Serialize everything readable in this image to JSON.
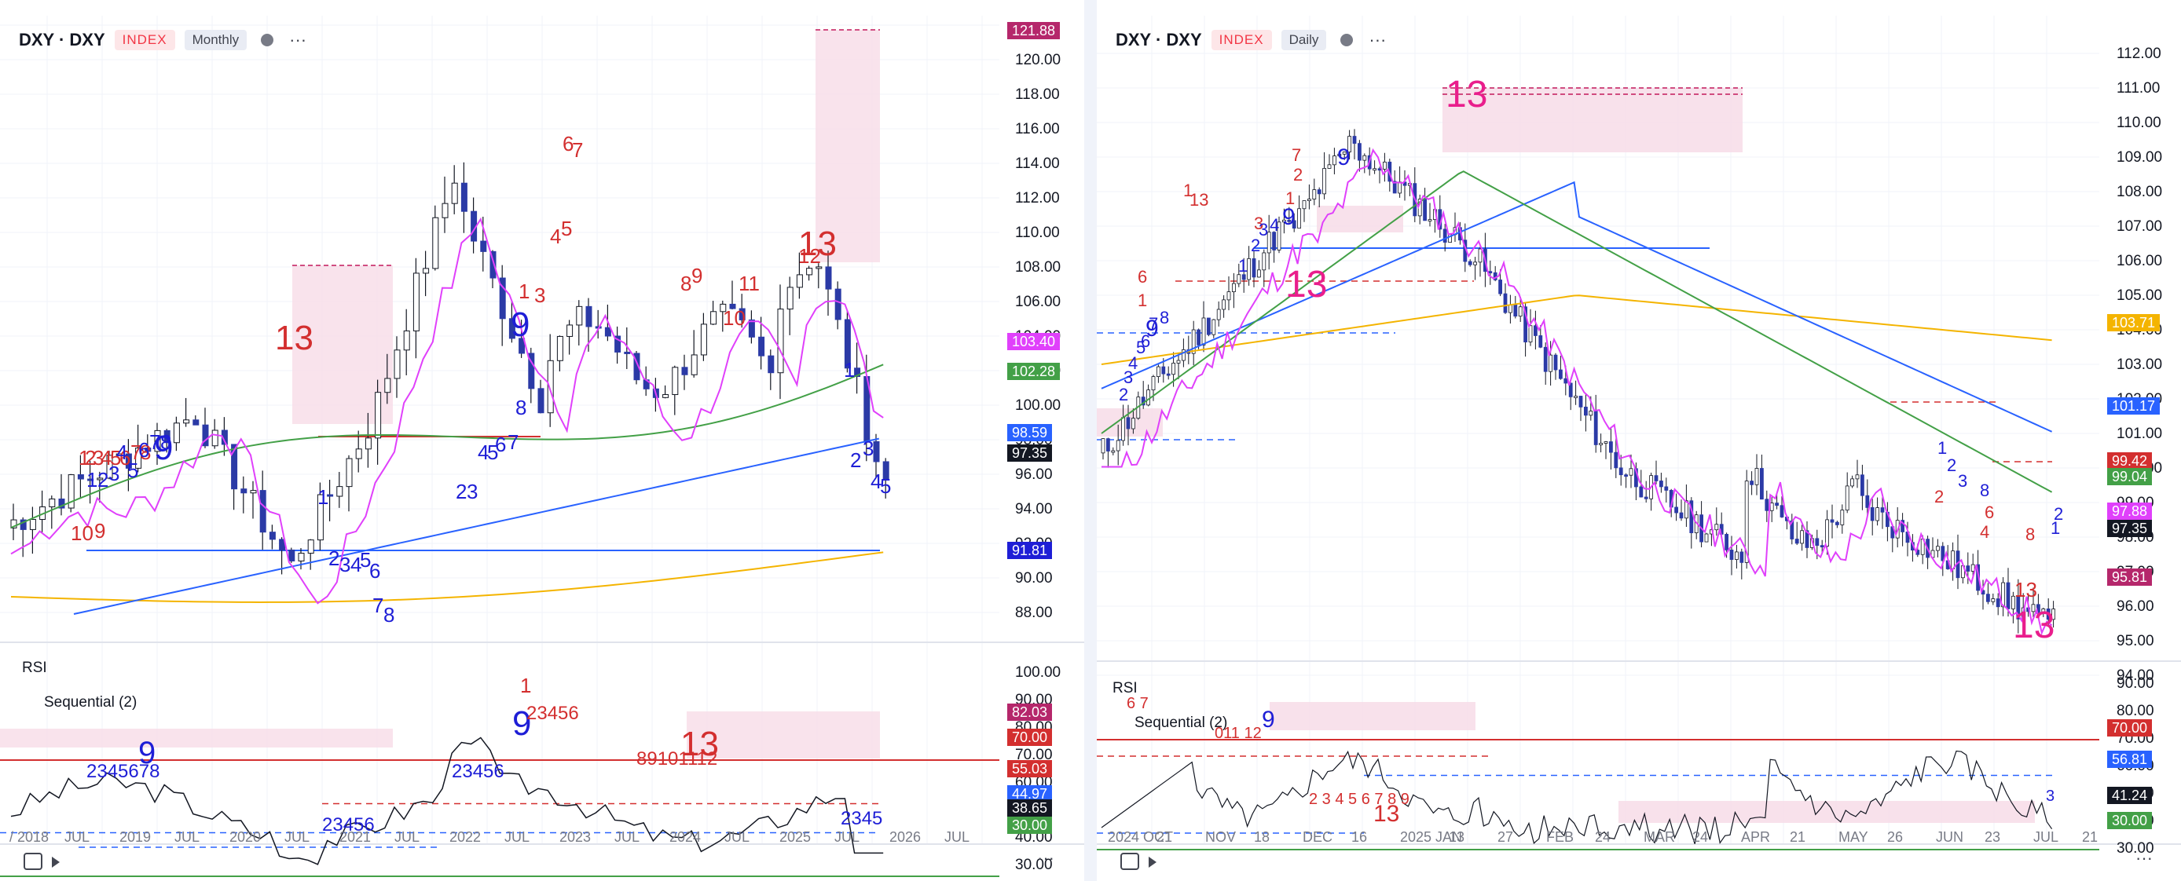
{
  "left": {
    "symbol": "DXY · DXY",
    "badge": "INDEX",
    "interval": "Monthly",
    "price_axis": [
      "122.00",
      "120.00",
      "118.00",
      "116.00",
      "114.00",
      "112.00",
      "110.00",
      "108.00",
      "106.00",
      "104.00",
      "102.00",
      "100.00",
      "98.00",
      "96.00",
      "94.00",
      "92.00",
      "90.00",
      "88.00"
    ],
    "price_tags": [
      {
        "text": "121.88",
        "color": "#b5276b"
      },
      {
        "text": "103.40",
        "color": "#e040fb"
      },
      {
        "text": "102.28",
        "color": "#43a047"
      },
      {
        "text": "98.59",
        "color": "#2962ff"
      },
      {
        "text": "97.35",
        "color": "#131722"
      },
      {
        "text": "91.81",
        "color": "#1e1ed6"
      }
    ],
    "rsi_label": "RSI",
    "seq_label": "Sequential (2)",
    "rsi_axis": [
      "100.00",
      "90.00",
      "80.00",
      "70.00",
      "60.00",
      "50.00",
      "40.00",
      "30.00"
    ],
    "rsi_tags": [
      {
        "text": "82.03",
        "color": "#b5276b"
      },
      {
        "text": "70.00",
        "color": "#d32f2f"
      },
      {
        "text": "55.03",
        "color": "#d32f2f"
      },
      {
        "text": "44.97",
        "color": "#2962ff"
      },
      {
        "text": "38.65",
        "color": "#131722"
      },
      {
        "text": "30.00",
        "color": "#43a047"
      }
    ],
    "time_axis": [
      "/ 2018",
      "JUL",
      "2019",
      "JUL",
      "2020",
      "JUL",
      "2021",
      "JUL",
      "2022",
      "JUL",
      "2023",
      "JUL",
      "2024",
      "JUL",
      "2025",
      "JUL",
      "2026",
      "JUL"
    ],
    "counts": {
      "thirteen_a": "13",
      "thirteen_b": "13",
      "thirteen_rsi": "13",
      "nine_a": "9",
      "nine_b": "9",
      "nine_c": "9",
      "nine_rsi": "9"
    }
  },
  "right": {
    "symbol": "DXY · DXY",
    "badge": "INDEX",
    "interval": "Daily",
    "price_axis": [
      "112.00",
      "111.00",
      "110.00",
      "109.00",
      "108.00",
      "107.00",
      "106.00",
      "105.00",
      "104.00",
      "103.00",
      "102.00",
      "101.00",
      "100.00",
      "99.00",
      "98.00",
      "97.00",
      "96.00",
      "95.00",
      "94.00"
    ],
    "price_tags": [
      {
        "text": "103.71",
        "color": "#f4b400"
      },
      {
        "text": "101.17",
        "color": "#2962ff"
      },
      {
        "text": "99.42",
        "color": "#d32f2f"
      },
      {
        "text": "99.04",
        "color": "#43a047"
      },
      {
        "text": "97.88",
        "color": "#e040fb"
      },
      {
        "text": "97.35",
        "color": "#131722"
      },
      {
        "text": "95.81",
        "color": "#b5276b"
      }
    ],
    "rsi_label": "RSI",
    "seq_label": "Sequential (2)",
    "rsi_axis": [
      "90.00",
      "80.00",
      "70.00",
      "60.00",
      "50.00",
      "40.00",
      "30.00"
    ],
    "rsi_tags": [
      {
        "text": "70.00",
        "color": "#d32f2f"
      },
      {
        "text": "56.81",
        "color": "#2962ff"
      },
      {
        "text": "41.24",
        "color": "#131722"
      },
      {
        "text": "30.00",
        "color": "#43a047"
      }
    ],
    "time_axis": [
      "2024 OCT",
      "21",
      "NOV",
      "18",
      "DEC",
      "16",
      "2025 JAN",
      "13",
      "27",
      "FEB",
      "24",
      "MAR",
      "24",
      "APR",
      "21",
      "MAY",
      "26",
      "JUN",
      "23",
      "JUL",
      "21"
    ],
    "counts": {
      "thirteen_a": "13",
      "thirteen_b": "13",
      "thirteen_c": "13",
      "thirteen_d": "13",
      "thirteen_rsi": "13",
      "nine_a": "9",
      "nine_b": "9",
      "nine_c": "9"
    }
  },
  "bottom_more": "···"
}
